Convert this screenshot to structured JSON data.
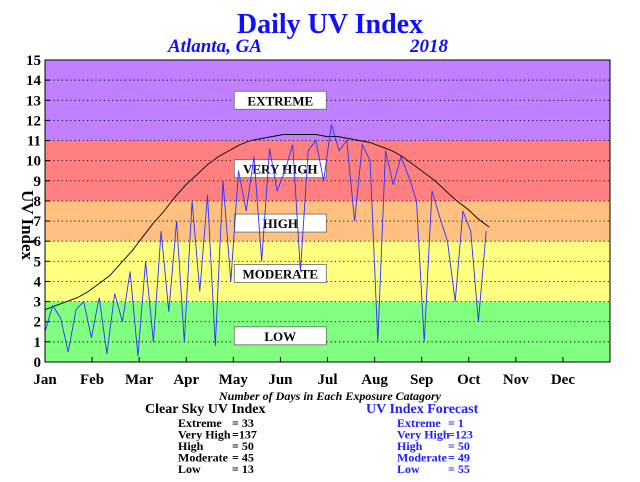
{
  "chart_data": {
    "type": "line",
    "title": "Daily UV Index",
    "location": "Atlanta, GA",
    "year": "2018",
    "ylabel": "UV Index",
    "ylim": [
      0,
      15
    ],
    "yticks": [
      0,
      1,
      2,
      3,
      4,
      5,
      6,
      7,
      8,
      9,
      10,
      11,
      12,
      13,
      14,
      15
    ],
    "xlim": [
      0,
      365
    ],
    "months": [
      "Jan",
      "Feb",
      "Mar",
      "Apr",
      "May",
      "Jun",
      "Jul",
      "Aug",
      "Sep",
      "Oct",
      "Nov",
      "Dec"
    ],
    "grid": "dotted horizontal at each integer",
    "bands": [
      {
        "label": "LOW",
        "from": 0,
        "to": 3,
        "color": "#80ff80"
      },
      {
        "label": "MODERATE",
        "from": 3,
        "to": 6,
        "color": "#ffff80"
      },
      {
        "label": "HIGH",
        "from": 6,
        "to": 8,
        "color": "#ffc080"
      },
      {
        "label": "VERY HIGH",
        "from": 8,
        "to": 11,
        "color": "#ff8080"
      },
      {
        "label": "EXTREME",
        "from": 11,
        "to": 15,
        "color": "#c080ff"
      }
    ],
    "series": [
      {
        "name": "Clear Sky UV Index",
        "color": "#000000",
        "x": [
          0,
          7,
          14,
          21,
          28,
          35,
          42,
          49,
          56,
          63,
          70,
          77,
          84,
          91,
          98,
          105,
          112,
          119,
          126,
          133,
          140,
          147,
          154,
          161,
          168,
          175,
          182,
          189,
          196,
          203,
          210,
          217,
          224,
          231,
          238,
          245,
          252,
          259,
          266,
          273,
          280,
          287
        ],
        "y": [
          2.6,
          2.8,
          3.0,
          3.2,
          3.5,
          3.9,
          4.3,
          4.9,
          5.5,
          6.2,
          6.9,
          7.5,
          8.2,
          8.8,
          9.3,
          9.8,
          10.2,
          10.5,
          10.8,
          11.0,
          11.1,
          11.2,
          11.3,
          11.3,
          11.3,
          11.3,
          11.2,
          11.2,
          11.1,
          11.0,
          10.9,
          10.7,
          10.5,
          10.2,
          9.8,
          9.4,
          9.0,
          8.5,
          8.0,
          7.6,
          7.1,
          6.7
        ]
      },
      {
        "name": "UV Index Forecast",
        "color": "#3030ff",
        "x": [
          0,
          5,
          10,
          15,
          20,
          25,
          30,
          35,
          40,
          45,
          50,
          55,
          60,
          65,
          70,
          75,
          80,
          85,
          90,
          95,
          100,
          105,
          110,
          115,
          120,
          125,
          130,
          135,
          140,
          145,
          150,
          155,
          160,
          165,
          170,
          175,
          180,
          185,
          190,
          195,
          200,
          205,
          210,
          215,
          220,
          225,
          230,
          235,
          240,
          245,
          250,
          255,
          260,
          265,
          270,
          275,
          280,
          285
        ],
        "y": [
          1.5,
          2.8,
          2.2,
          0.5,
          2.6,
          3.0,
          1.2,
          3.2,
          0.4,
          3.4,
          2.0,
          4.5,
          0.3,
          5.0,
          1.0,
          6.5,
          2.5,
          7.0,
          1.0,
          8.0,
          3.5,
          8.3,
          0.8,
          9.0,
          4.0,
          9.5,
          7.5,
          10.2,
          5.0,
          10.6,
          8.5,
          9.5,
          10.8,
          4.5,
          10.5,
          11.0,
          9.0,
          11.8,
          10.5,
          11.0,
          7.0,
          10.8,
          10.0,
          1.0,
          10.5,
          8.8,
          10.2,
          9.2,
          8.0,
          1.0,
          8.5,
          7.2,
          6.0,
          3.0,
          7.5,
          6.5,
          2.0,
          6.5
        ]
      }
    ],
    "band_labels": [
      "EXTREME",
      "VERY HIGH",
      "HIGH",
      "MODERATE",
      "LOW"
    ],
    "subtitle_counts": "Number of Days in Each Exposure Catagory",
    "counts": [
      {
        "heading": "Clear Sky UV Index",
        "color": "#000000",
        "rows": [
          {
            "label": "Extreme",
            "value": "= 33"
          },
          {
            "label": "Very High",
            "value": "=137"
          },
          {
            "label": "High",
            "value": "= 50"
          },
          {
            "label": "Moderate",
            "value": "= 45"
          },
          {
            "label": "Low",
            "value": "= 13"
          }
        ]
      },
      {
        "heading": "UV Index Forecast",
        "color": "#2020ff",
        "rows": [
          {
            "label": "Extreme",
            "value": "=  1"
          },
          {
            "label": "Very High",
            "value": "=123"
          },
          {
            "label": "High",
            "value": "= 50"
          },
          {
            "label": "Moderate",
            "value": "= 49"
          },
          {
            "label": "Low",
            "value": "= 55"
          }
        ]
      }
    ]
  }
}
